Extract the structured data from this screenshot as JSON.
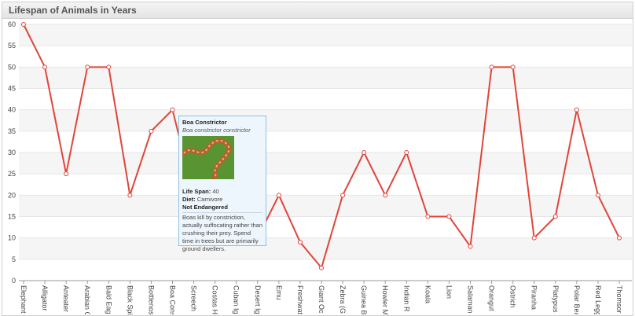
{
  "chart_data": {
    "type": "line",
    "title": "Lifespan of Animals in Years",
    "categories": [
      "Elephant",
      "Alligator",
      "Anteater",
      "Arabian C",
      "Bald Eag",
      "Black Spi",
      "Bottlenos",
      "Boa Cons",
      "Screech",
      "Costas H",
      "Cuban Ig",
      "Desert Ig",
      "Emu",
      "Freshwat",
      "Giant Oc",
      "Zebra (G",
      "Guinea B",
      "Howler M",
      "Indian R",
      "Koala",
      "Lion",
      "Salaman",
      "Orangut",
      "Ostrich",
      "Piranha",
      "Platypus",
      "Polar Bea",
      "Red Legg",
      "Thomsor"
    ],
    "values": [
      60,
      50,
      25,
      50,
      50,
      20,
      35,
      40,
      20,
      10,
      15,
      10,
      20,
      9,
      3,
      20,
      30,
      20,
      30,
      15,
      15,
      8,
      50,
      50,
      10,
      15,
      40,
      20,
      10
    ],
    "ylim": [
      0,
      60
    ],
    "yticks": [
      0,
      5,
      10,
      15,
      20,
      25,
      30,
      35,
      40,
      45,
      50,
      55,
      60
    ],
    "grid": true,
    "line_color": "#e0453a",
    "band_color": "#f5f5f5"
  },
  "tooltip": {
    "name": "Boa Constrictor",
    "scientific": "Boa constrictor constrictor",
    "lifespan_label": "Life Span:",
    "lifespan": "40",
    "diet_label": "Diet:",
    "diet": "Carnivore",
    "status": "Not Endangered",
    "description": "Boas kill by constriction, actually suffocating rather than crushing their prey. Spend time in trees but are primarily ground dwellers."
  }
}
